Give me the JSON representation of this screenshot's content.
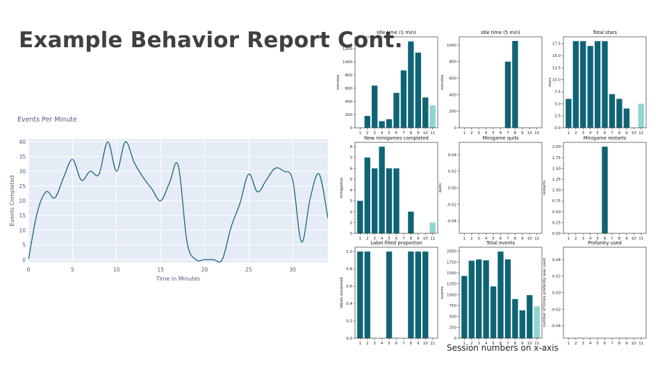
{
  "slide": {
    "title": "Example Behavior Report Cont.",
    "footer": "Session numbers on x-axis"
  },
  "colors": {
    "bar": "#0e6474",
    "bar_highlight": "#8ed6d0",
    "line": "#1a6478",
    "plot_bg": "#e5ecf6",
    "text": "#4a5a7a"
  },
  "chart_data": [
    {
      "type": "line",
      "title": "Events Per Minute",
      "xlabel": "Time in Minutes",
      "ylabel": "Events Completed",
      "xlim": [
        0,
        34
      ],
      "ylim": [
        -1,
        41
      ],
      "xticks": [
        0,
        5,
        10,
        15,
        20,
        25,
        30
      ],
      "yticks": [
        0,
        5,
        10,
        15,
        20,
        25,
        30,
        35,
        40
      ],
      "grid": true,
      "x": [
        0,
        1,
        2,
        3,
        4,
        5,
        6,
        7,
        8,
        9,
        10,
        11,
        12,
        13,
        14,
        15,
        16,
        17,
        18,
        19,
        20,
        21,
        22,
        23,
        24,
        25,
        26,
        27,
        28,
        29,
        30,
        31,
        32,
        33,
        34
      ],
      "y": [
        0,
        16,
        23,
        21,
        28,
        34,
        27,
        30,
        29,
        40,
        30,
        40,
        33,
        28,
        24,
        20,
        26,
        32,
        6,
        0,
        0,
        0,
        0,
        11,
        19,
        29,
        23,
        27,
        31,
        30,
        27,
        6,
        21,
        29,
        14
      ]
    },
    {
      "type": "bar",
      "title": "Idle time (1 min)",
      "xlabel": "",
      "ylabel": "minutes",
      "categories": [
        "1",
        "2",
        "3",
        "4",
        "5",
        "6",
        "7",
        "8",
        "9",
        "10",
        "11"
      ],
      "values": [
        0,
        180,
        640,
        100,
        130,
        530,
        870,
        1310,
        1140,
        460,
        340
      ],
      "ylim": [
        0,
        1380
      ],
      "yticks": [
        0,
        200,
        400,
        600,
        800,
        1000,
        1200
      ],
      "highlight_last": true
    },
    {
      "type": "bar",
      "title": "Idle time (5 min)",
      "xlabel": "",
      "ylabel": "minutes",
      "categories": [
        "1",
        "2",
        "3",
        "4",
        "5",
        "6",
        "7",
        "8",
        "9",
        "10",
        "11"
      ],
      "values": [
        0,
        0,
        0,
        0,
        0,
        0,
        800,
        1050,
        0,
        0,
        0
      ],
      "ylim": [
        0,
        1100
      ],
      "yticks": [
        0,
        200,
        400,
        600,
        800,
        1000
      ],
      "highlight_last": true
    },
    {
      "type": "bar",
      "title": "Total stars",
      "xlabel": "",
      "ylabel": "stars",
      "categories": [
        "1",
        "2",
        "3",
        "4",
        "5",
        "6",
        "7",
        "8",
        "9",
        "10",
        "11"
      ],
      "values": [
        6,
        18,
        18,
        17,
        18,
        18,
        7,
        6,
        4,
        0,
        5
      ],
      "ylim": [
        0,
        18.9
      ],
      "yticks": [
        0.0,
        2.5,
        5.0,
        7.5,
        10.0,
        12.5,
        15.0,
        17.5
      ],
      "tick_decimals": 1,
      "highlight_last": true
    },
    {
      "type": "bar",
      "title": "New minigames completed",
      "xlabel": "",
      "ylabel": "minigames",
      "categories": [
        "1",
        "2",
        "3",
        "4",
        "5",
        "6",
        "7",
        "8",
        "9",
        "10",
        "11"
      ],
      "values": [
        3,
        7,
        6,
        8,
        6,
        6,
        0,
        2,
        0,
        0,
        1
      ],
      "ylim": [
        0,
        8.4
      ],
      "yticks": [
        0,
        1,
        2,
        3,
        4,
        5,
        6,
        7,
        8
      ],
      "highlight_last": true
    },
    {
      "type": "bar",
      "title": "Minigame quits",
      "xlabel": "",
      "ylabel": "quits",
      "categories": [
        "1",
        "2",
        "3",
        "4",
        "5",
        "6",
        "7",
        "8",
        "9",
        "10",
        "11"
      ],
      "values": [
        0,
        0,
        0,
        0,
        0,
        0,
        0,
        0,
        0,
        0,
        0
      ],
      "ylim": [
        -0.055,
        0.055
      ],
      "yticks": [
        -0.04,
        -0.02,
        0.0,
        0.02,
        0.04
      ],
      "tick_decimals": 2,
      "highlight_last": true
    },
    {
      "type": "bar",
      "title": "Minigame restarts",
      "xlabel": "",
      "ylabel": "restarts",
      "categories": [
        "1",
        "2",
        "3",
        "4",
        "5",
        "6",
        "7",
        "8",
        "9",
        "10",
        "11"
      ],
      "values": [
        0,
        0,
        0,
        0,
        0,
        2,
        0,
        0,
        0,
        0,
        0
      ],
      "ylim": [
        0,
        2.1
      ],
      "yticks": [
        0.0,
        0.25,
        0.5,
        0.75,
        1.0,
        1.25,
        1.5,
        1.75,
        2.0
      ],
      "tick_decimals": 2,
      "highlight_last": true
    },
    {
      "type": "bar",
      "title": "Label filled proportion",
      "xlabel": "",
      "ylabel": "labels answered",
      "categories": [
        "1",
        "2",
        "3",
        "4",
        "5",
        "6",
        "7",
        "8",
        "9",
        "10",
        "11"
      ],
      "values": [
        1,
        1,
        0,
        0,
        1,
        0,
        0,
        1,
        1,
        1,
        0
      ],
      "ylim": [
        0,
        1.05
      ],
      "yticks": [
        0.0,
        0.2,
        0.4,
        0.6,
        0.8,
        1.0
      ],
      "tick_decimals": 1,
      "highlight_last": true
    },
    {
      "type": "bar",
      "title": "Total events",
      "xlabel": "",
      "ylabel": "events",
      "categories": [
        "1",
        "2",
        "3",
        "4",
        "5",
        "6",
        "7",
        "8",
        "9",
        "10",
        "11"
      ],
      "values": [
        1430,
        1780,
        1810,
        1790,
        1190,
        1990,
        1810,
        900,
        640,
        990,
        730
      ],
      "ylim": [
        0,
        2090
      ],
      "yticks": [
        0,
        250,
        500,
        750,
        1000,
        1250,
        1500,
        1750,
        2000
      ],
      "highlight_last": true
    },
    {
      "type": "bar",
      "title": "Profanity used",
      "xlabel": "",
      "ylabel": "number of times profanity was used",
      "categories": [
        "1",
        "2",
        "3",
        "4",
        "5",
        "6",
        "7",
        "8",
        "9",
        "10",
        "11"
      ],
      "values": [
        0,
        0,
        0,
        0,
        0,
        0,
        0,
        0,
        0,
        0,
        0
      ],
      "ylim": [
        -0.055,
        0.055
      ],
      "yticks": [
        -0.04,
        -0.02,
        0.0,
        0.02,
        0.04
      ],
      "tick_decimals": 2,
      "highlight_last": true
    }
  ]
}
